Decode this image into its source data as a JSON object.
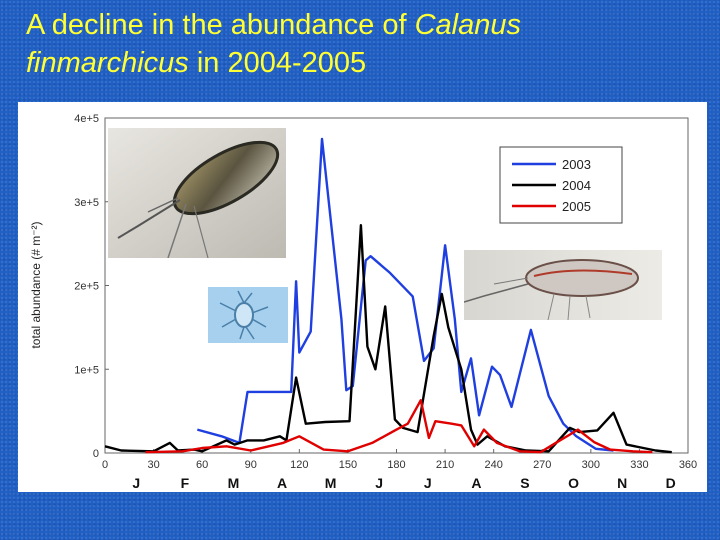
{
  "slide": {
    "title_line1_plain": "A decline in the abundance of ",
    "title_line1_italic": "Calanus",
    "title_line2_italic": "finmarchicus",
    "title_line2_plain": " in 2004-2005"
  },
  "colors": {
    "background": "#1f5fc4",
    "title": "#ffff33",
    "series_2003": "#1f3fe0",
    "series_2004": "#000000",
    "series_2005": "#e00000"
  },
  "chart_data": {
    "type": "line",
    "title": "",
    "xlabel": "",
    "ylabel": "total abundance (# m⁻²)",
    "xlim": [
      0,
      360
    ],
    "ylim": [
      0,
      400000
    ],
    "x_ticks": [
      "0",
      "30",
      "60",
      "90",
      "120",
      "150",
      "180",
      "210",
      "240",
      "270",
      "300",
      "330",
      "360"
    ],
    "y_ticks": [
      "0",
      "1e+5",
      "2e+5",
      "3e+5",
      "4e+5"
    ],
    "month_labels": [
      "J",
      "F",
      "M",
      "A",
      "M",
      "J",
      "J",
      "A",
      "S",
      "O",
      "N",
      "D"
    ],
    "legend_position": "top-right",
    "grid": false,
    "series": [
      {
        "name": "2003",
        "color": "#1f3fe0",
        "x": [
          57,
          72,
          83,
          88,
          115,
          118,
          120,
          127,
          134,
          146,
          149,
          153,
          161,
          164,
          176,
          190,
          197,
          203,
          210,
          216,
          220,
          226,
          231,
          239,
          244,
          251,
          263,
          274,
          283,
          291,
          303,
          314
        ],
        "y": [
          28000,
          20000,
          12000,
          73000,
          73000,
          205000,
          120000,
          145000,
          375000,
          160000,
          75000,
          80000,
          230000,
          235000,
          215000,
          187000,
          110000,
          125000,
          248000,
          160000,
          73000,
          113000,
          45000,
          103000,
          93000,
          55000,
          147000,
          68000,
          35000,
          20000,
          5000,
          3000
        ]
      },
      {
        "name": "2004",
        "color": "#000000",
        "x": [
          0,
          10,
          30,
          40,
          45,
          55,
          60,
          75,
          80,
          88,
          98,
          108,
          112,
          118,
          124,
          136,
          151,
          158,
          162,
          167,
          173,
          179,
          184,
          193,
          203,
          208,
          212,
          220,
          226,
          230,
          236,
          247,
          260,
          274,
          287,
          293,
          304,
          314,
          322,
          340,
          350
        ],
        "y": [
          8000,
          3000,
          2000,
          12000,
          3000,
          4000,
          2000,
          15000,
          10000,
          15000,
          15000,
          20000,
          15000,
          90000,
          35000,
          37000,
          38000,
          272000,
          127000,
          100000,
          175000,
          40000,
          30000,
          25000,
          140000,
          190000,
          150000,
          100000,
          28000,
          10000,
          20000,
          8000,
          3000,
          2000,
          30000,
          25000,
          27000,
          48000,
          10000,
          3000,
          1000
        ]
      },
      {
        "name": "2005",
        "color": "#e00000",
        "x": [
          25,
          48,
          60,
          75,
          90,
          110,
          120,
          135,
          150,
          165,
          180,
          187,
          195,
          200,
          204,
          214,
          220,
          228,
          234,
          242,
          256,
          269,
          280,
          287,
          292,
          302,
          312,
          326,
          338
        ],
        "y": [
          1000,
          2000,
          6000,
          8000,
          3000,
          12000,
          20000,
          4000,
          2000,
          12000,
          28000,
          35000,
          63000,
          18000,
          38000,
          35000,
          33000,
          8000,
          28000,
          12000,
          2000,
          1000,
          14000,
          22000,
          28000,
          13000,
          4000,
          2000,
          1000
        ]
      }
    ]
  },
  "images": {
    "adult_copepod_photo": "copepod-photo-icon",
    "nauplius_photo": "nauplius-photo-icon",
    "copepod_side_photo": "copepod-photo-icon"
  }
}
